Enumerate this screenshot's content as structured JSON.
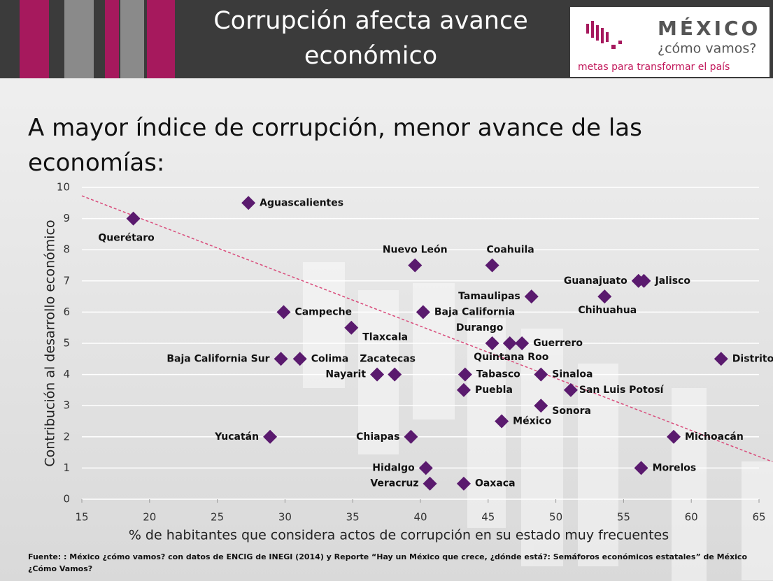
{
  "chart_data": {
    "type": "scatter",
    "header_title": "Corrupción afecta avance económico",
    "logo": {
      "name": "MÉXICO",
      "tagline": "¿cómo vamos?",
      "motto": "metas para transformar el país"
    },
    "title": "A mayor índice de corrupción, menor avance de las economías:",
    "x_label": "% de habitantes que considera actos de corrupción en su estado muy frecuentes",
    "y_label": "Contribución al desarrollo económico",
    "source": "Fuente: : México ¿cómo vamos? con datos de ENCIG de INEGI (2014) y Reporte “Hay un México que crece, ¿dónde está?: Semáforos económicos estatales” de México ¿Cómo Vamos?",
    "color": "#5a1a6e",
    "trendline_color": "#d94a7a",
    "grid": true,
    "xlim": [
      15,
      65
    ],
    "ylim": [
      0,
      10
    ],
    "xticks": [
      15,
      20,
      25,
      30,
      35,
      40,
      45,
      50,
      55,
      60,
      65
    ],
    "yticks": [
      0,
      1,
      2,
      3,
      4,
      5,
      6,
      7,
      8,
      9,
      10
    ],
    "categories": [
      "Querétaro",
      "Aguascalientes",
      "Nuevo León",
      "Coahuila",
      "Guanajuato",
      "Jalisco",
      "Tamaulipas",
      "Chihuahua",
      "Campeche",
      "Baja California",
      "Tlaxcala",
      "Durango",
      "Quintana Roo",
      "Guerrero",
      "Baja California Sur",
      "Colima",
      "Distrito Federal",
      "Zacatecas",
      "Nayarit",
      "Tabasco",
      "Sinaloa",
      "Puebla",
      "San Luis Potosí",
      "Sonora",
      "México",
      "Yucatán",
      "Chiapas",
      "Michoacán",
      "Hidalgo",
      "Morelos",
      "Veracruz",
      "Oaxaca"
    ],
    "x": [
      18.8,
      27.3,
      39.6,
      45.3,
      56.1,
      56.5,
      48.2,
      53.6,
      29.9,
      40.2,
      34.9,
      45.3,
      46.6,
      47.5,
      29.7,
      31.1,
      62.2,
      38.1,
      36.8,
      43.3,
      48.9,
      43.2,
      51.1,
      48.9,
      46.0,
      28.9,
      39.3,
      58.7,
      40.4,
      56.3,
      40.7,
      43.2
    ],
    "values": [
      9,
      9.5,
      7.5,
      7.5,
      7,
      7,
      6.5,
      6.5,
      6,
      6,
      5.5,
      5,
      5,
      5,
      4.5,
      4.5,
      4.5,
      4,
      4,
      4,
      4,
      3.5,
      3.5,
      3,
      2.5,
      2,
      2,
      2,
      1,
      1,
      0.5,
      0.5
    ],
    "trendline": {
      "x": [
        15,
        66
      ],
      "y": [
        9.73,
        1.2
      ]
    }
  }
}
